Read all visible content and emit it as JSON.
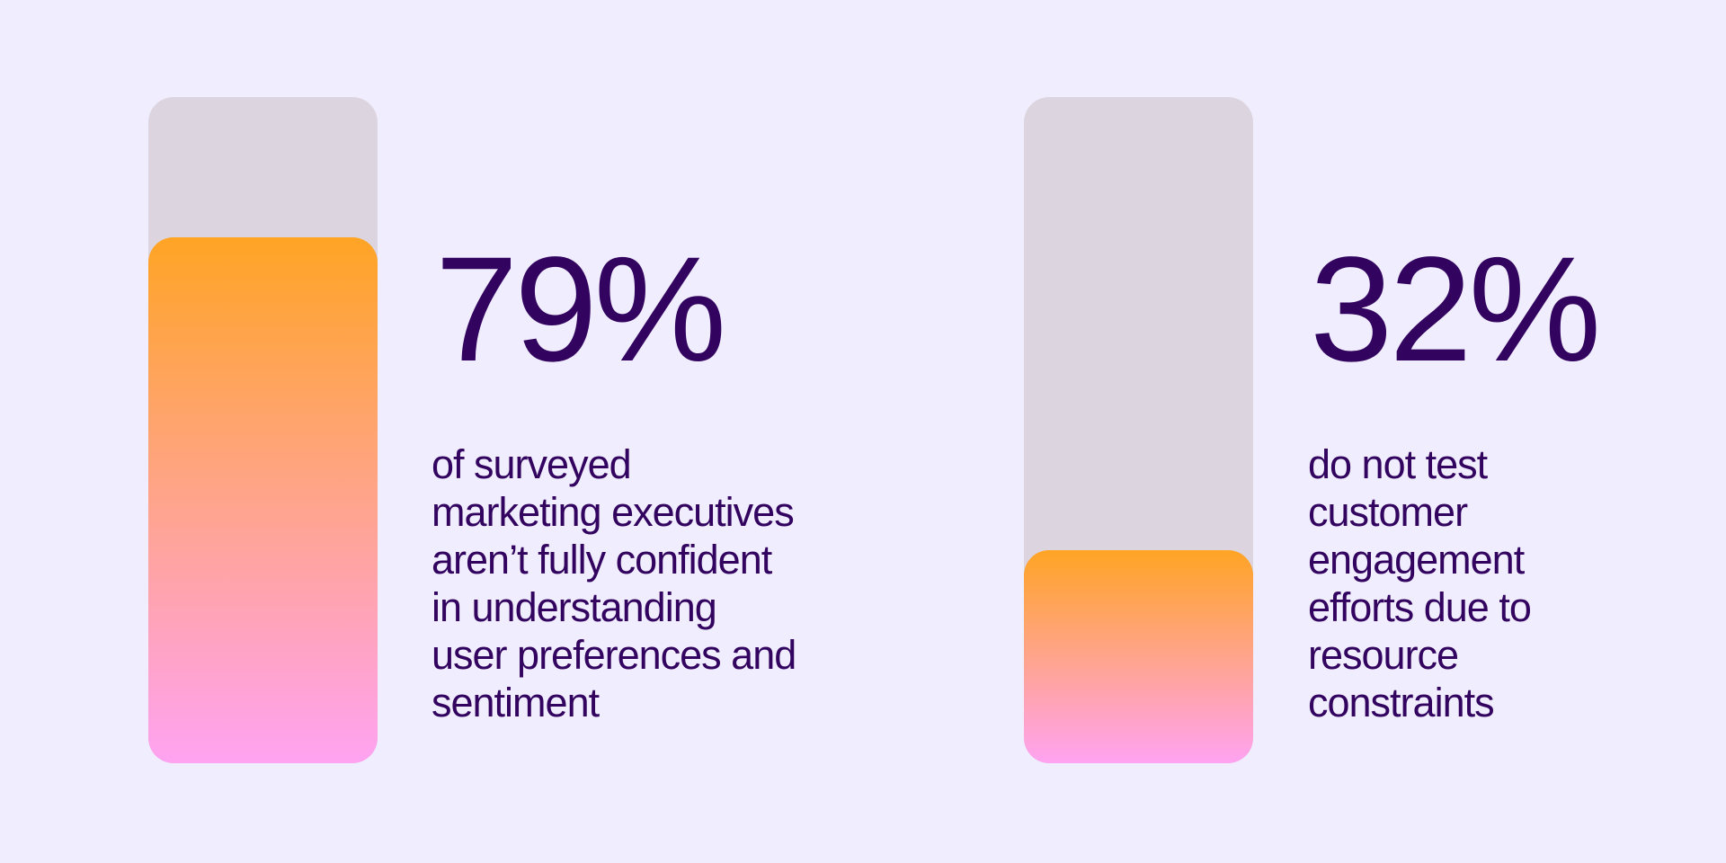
{
  "colors": {
    "background": "#f0edfe",
    "track": "#dcd5df",
    "fill_top": "#ffa424",
    "fill_bottom": "#ffa3f2",
    "text": "#32045f"
  },
  "chart_data": {
    "type": "bar",
    "ylim": [
      0,
      100
    ],
    "items": [
      {
        "value": 79,
        "label": "79%",
        "description_lines": [
          "of surveyed",
          "marketing executives",
          "aren’t fully confident",
          "in understanding",
          "user preferences and",
          "sentiment"
        ]
      },
      {
        "value": 32,
        "label": "32%",
        "description_lines": [
          "do not test",
          "customer",
          "engagement",
          "efforts due to",
          "resource",
          "constraints"
        ]
      }
    ]
  }
}
